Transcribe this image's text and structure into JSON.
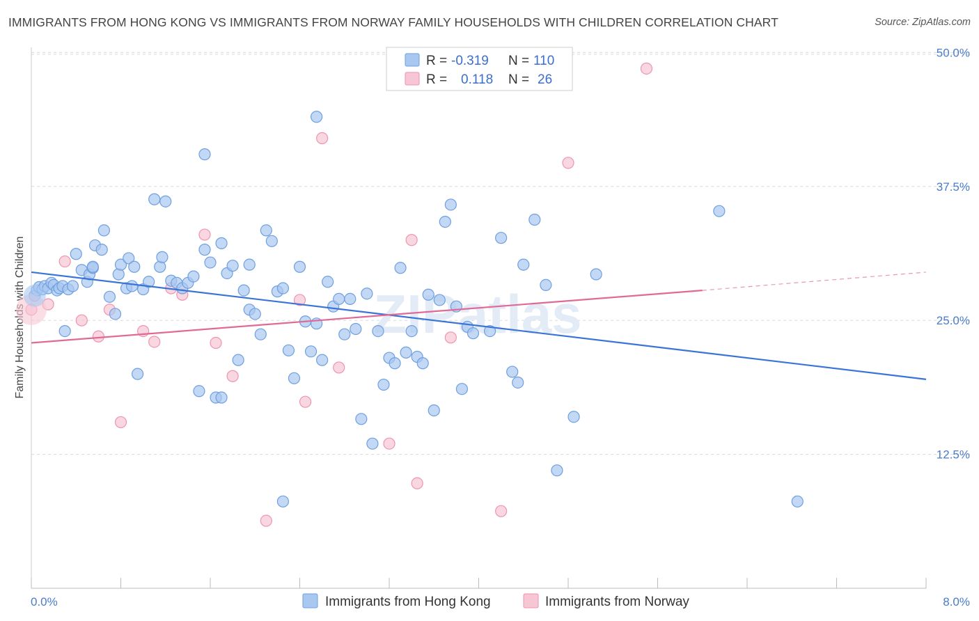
{
  "title": "IMMIGRANTS FROM HONG KONG VS IMMIGRANTS FROM NORWAY FAMILY HOUSEHOLDS WITH CHILDREN CORRELATION CHART",
  "source": "Source: ZipAtlas.com",
  "watermark": "ZIPatlas",
  "colors": {
    "blue_fill": "#a9c8f0",
    "blue_stroke": "#6e9fe0",
    "blue_line": "#3a74d6",
    "pink_fill": "#f7c6d4",
    "pink_stroke": "#ef93b0",
    "pink_line": "#e06a95",
    "grid": "#d9d9d9",
    "tick_text": "#4a7cc9"
  },
  "legend": {
    "r_label": "R =",
    "n_label": "N =",
    "series": [
      {
        "r": "-0.319",
        "n": "110"
      },
      {
        "r": "0.118",
        "n": "26"
      }
    ]
  },
  "chart_data": {
    "type": "scatter",
    "title": "IMMIGRANTS FROM HONG KONG VS IMMIGRANTS FROM NORWAY FAMILY HOUSEHOLDS WITH CHILDREN CORRELATION CHART",
    "xlabel": "",
    "ylabel": "Family Households with Children",
    "xlim": [
      0.0,
      8.0
    ],
    "ylim": [
      0.0,
      51.0
    ],
    "x_tick_labels": [
      "0.0%",
      "8.0%"
    ],
    "y_ticks": [
      12.5,
      25.0,
      37.5,
      50.0
    ],
    "y_tick_labels": [
      "12.5%",
      "25.0%",
      "37.5%",
      "50.0%"
    ],
    "grid": "horizontal dashed",
    "legend_position": "top-center",
    "series": [
      {
        "name": "Immigrants from Hong Kong",
        "color": "#6e9fe0",
        "trend": {
          "x": [
            0.0,
            8.0
          ],
          "y": [
            29.5,
            19.5
          ]
        },
        "points": [
          [
            0.03,
            27.3
          ],
          [
            0.05,
            27.8
          ],
          [
            0.07,
            28.1
          ],
          [
            0.1,
            27.9
          ],
          [
            0.12,
            28.2
          ],
          [
            0.15,
            28.0
          ],
          [
            0.18,
            28.5
          ],
          [
            0.2,
            28.3
          ],
          [
            0.23,
            27.8
          ],
          [
            0.25,
            28.0
          ],
          [
            0.28,
            28.2
          ],
          [
            0.3,
            24.0
          ],
          [
            0.33,
            27.9
          ],
          [
            0.37,
            28.2
          ],
          [
            0.4,
            31.2
          ],
          [
            0.45,
            29.7
          ],
          [
            0.5,
            28.6
          ],
          [
            0.52,
            29.3
          ],
          [
            0.55,
            29.9
          ],
          [
            0.57,
            32.0
          ],
          [
            0.63,
            31.6
          ],
          [
            0.65,
            33.4
          ],
          [
            0.7,
            27.2
          ],
          [
            0.75,
            25.6
          ],
          [
            0.78,
            29.3
          ],
          [
            0.8,
            30.2
          ],
          [
            0.85,
            28.0
          ],
          [
            0.87,
            30.8
          ],
          [
            0.9,
            28.2
          ],
          [
            0.92,
            30.0
          ],
          [
            0.95,
            20.0
          ],
          [
            1.0,
            27.9
          ],
          [
            1.05,
            28.6
          ],
          [
            1.1,
            36.3
          ],
          [
            1.15,
            30.0
          ],
          [
            1.17,
            30.9
          ],
          [
            1.2,
            36.1
          ],
          [
            1.25,
            28.7
          ],
          [
            1.3,
            28.5
          ],
          [
            1.35,
            28.0
          ],
          [
            1.4,
            28.5
          ],
          [
            1.45,
            29.1
          ],
          [
            1.5,
            18.4
          ],
          [
            1.55,
            31.6
          ],
          [
            1.6,
            30.4
          ],
          [
            1.65,
            17.8
          ],
          [
            1.7,
            32.2
          ],
          [
            1.75,
            29.4
          ],
          [
            1.8,
            30.1
          ],
          [
            1.85,
            21.3
          ],
          [
            1.9,
            27.8
          ],
          [
            1.95,
            26.0
          ],
          [
            2.0,
            25.6
          ],
          [
            2.05,
            23.7
          ],
          [
            2.1,
            33.4
          ],
          [
            2.15,
            32.4
          ],
          [
            2.2,
            27.7
          ],
          [
            2.25,
            28.0
          ],
          [
            2.3,
            22.2
          ],
          [
            2.35,
            19.6
          ],
          [
            2.4,
            30.0
          ],
          [
            2.45,
            24.9
          ],
          [
            2.5,
            22.1
          ],
          [
            2.55,
            24.7
          ],
          [
            2.6,
            21.3
          ],
          [
            2.65,
            28.6
          ],
          [
            2.7,
            26.3
          ],
          [
            2.75,
            27.0
          ],
          [
            2.8,
            23.7
          ],
          [
            2.85,
            27.0
          ],
          [
            2.9,
            24.2
          ],
          [
            2.95,
            15.8
          ],
          [
            3.0,
            27.5
          ],
          [
            3.05,
            13.5
          ],
          [
            3.1,
            24.0
          ],
          [
            3.15,
            19.0
          ],
          [
            3.2,
            21.5
          ],
          [
            3.25,
            21.0
          ],
          [
            3.3,
            29.9
          ],
          [
            3.35,
            22.0
          ],
          [
            3.4,
            24.0
          ],
          [
            3.45,
            21.6
          ],
          [
            3.5,
            21.0
          ],
          [
            3.55,
            27.4
          ],
          [
            3.6,
            16.6
          ],
          [
            3.65,
            26.9
          ],
          [
            3.7,
            34.2
          ],
          [
            3.75,
            35.8
          ],
          [
            3.8,
            26.3
          ],
          [
            3.85,
            18.6
          ],
          [
            3.9,
            24.4
          ],
          [
            3.95,
            23.8
          ],
          [
            4.1,
            24.0
          ],
          [
            4.2,
            32.7
          ],
          [
            4.3,
            20.2
          ],
          [
            4.35,
            19.2
          ],
          [
            4.4,
            30.2
          ],
          [
            4.5,
            34.4
          ],
          [
            4.6,
            28.3
          ],
          [
            4.7,
            11.0
          ],
          [
            4.85,
            16.0
          ],
          [
            5.05,
            29.3
          ],
          [
            6.15,
            35.2
          ],
          [
            6.85,
            8.1
          ],
          [
            2.25,
            8.1
          ],
          [
            1.7,
            17.8
          ],
          [
            0.55,
            30.0
          ],
          [
            1.95,
            30.2
          ],
          [
            2.55,
            44.0
          ],
          [
            1.55,
            40.5
          ]
        ]
      },
      {
        "name": "Immigrants from Norway",
        "color": "#ef93b0",
        "trend": {
          "x": [
            0.0,
            6.0
          ],
          "y": [
            22.9,
            27.8
          ],
          "dashed_to": {
            "x": 8.0,
            "y": 29.5
          }
        },
        "points": [
          [
            0.0,
            26.0
          ],
          [
            0.15,
            26.5
          ],
          [
            0.3,
            30.5
          ],
          [
            0.45,
            25.0
          ],
          [
            0.6,
            23.5
          ],
          [
            0.7,
            26.0
          ],
          [
            0.8,
            15.5
          ],
          [
            1.0,
            24.0
          ],
          [
            1.1,
            23.0
          ],
          [
            1.25,
            28.0
          ],
          [
            1.35,
            27.4
          ],
          [
            1.55,
            33.0
          ],
          [
            1.65,
            22.9
          ],
          [
            1.8,
            19.8
          ],
          [
            2.1,
            6.3
          ],
          [
            2.4,
            26.9
          ],
          [
            2.45,
            17.4
          ],
          [
            2.6,
            42.0
          ],
          [
            2.75,
            20.6
          ],
          [
            3.2,
            13.5
          ],
          [
            3.4,
            32.5
          ],
          [
            3.45,
            9.8
          ],
          [
            3.75,
            23.4
          ],
          [
            4.2,
            7.2
          ],
          [
            4.8,
            39.7
          ],
          [
            5.5,
            48.5
          ]
        ]
      }
    ]
  },
  "bottom_legend": [
    "Immigrants from Hong Kong",
    "Immigrants from Norway"
  ]
}
